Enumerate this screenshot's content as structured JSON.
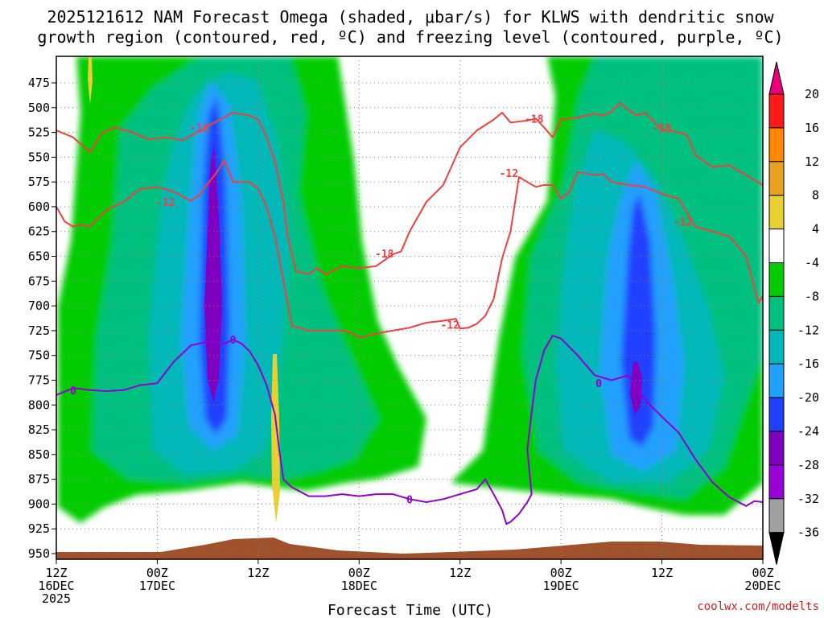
{
  "chart_data": {
    "type": "time-height contour",
    "title_line1": "2025121612 NAM Forecast Omega (shaded, μbar/s) for KLWS with dendritic snow",
    "title_line2": "growth region (contoured, red, ºC) and freezing level (contoured, purple, ºC)",
    "xlabel": "Forecast Time (UTC)",
    "credit": "coolwx.com/modelts",
    "ylim": [
      950,
      450
    ],
    "y_ticks": [
      475,
      500,
      525,
      550,
      575,
      600,
      625,
      650,
      675,
      700,
      725,
      750,
      775,
      800,
      825,
      850,
      875,
      900,
      925,
      950
    ],
    "x_range_hours": [
      0,
      84
    ],
    "x_ticks": [
      {
        "hour": 0,
        "label1": "12Z",
        "label2": "16DEC",
        "label3": "2025"
      },
      {
        "hour": 12,
        "label1": "00Z",
        "label2": "17DEC",
        "label3": ""
      },
      {
        "hour": 24,
        "label1": "12Z",
        "label2": "",
        "label3": ""
      },
      {
        "hour": 36,
        "label1": "00Z",
        "label2": "18DEC",
        "label3": ""
      },
      {
        "hour": 48,
        "label1": "12Z",
        "label2": "",
        "label3": ""
      },
      {
        "hour": 60,
        "label1": "00Z",
        "label2": "19DEC",
        "label3": ""
      },
      {
        "hour": 72,
        "label1": "12Z",
        "label2": "",
        "label3": ""
      },
      {
        "hour": 84,
        "label1": "00Z",
        "label2": "20DEC",
        "label3": ""
      }
    ],
    "colorbar": {
      "levels": [
        20,
        16,
        12,
        8,
        4,
        -4,
        -8,
        -12,
        -16,
        -20,
        -24,
        -28,
        -32,
        -36
      ],
      "colors": [
        "#ff1a1a",
        "#ff8800",
        "#e8a020",
        "#e8d030",
        "#ffffff",
        "#00cc00",
        "#00c080",
        "#00b8b8",
        "#20a0ff",
        "#2040ff",
        "#8000c0",
        "#9a00d8",
        "#a0a0a0"
      ],
      "top_color": "#e8007a",
      "bottom_color": "#000000"
    },
    "dgz_color": "#f04040",
    "freezing_color": "#9000d0",
    "contour_labels": [
      {
        "text": "-18",
        "hour": 17.0,
        "p": 520,
        "color": "#f04040"
      },
      {
        "text": "-12",
        "hour": 13.0,
        "p": 595,
        "color": "#f04040"
      },
      {
        "text": "-18",
        "hour": 39.0,
        "p": 647,
        "color": "#f04040"
      },
      {
        "text": "-12",
        "hour": 46.8,
        "p": 719,
        "color": "#f04040"
      },
      {
        "text": "-12",
        "hour": 53.8,
        "p": 566,
        "color": "#f04040"
      },
      {
        "text": "-18",
        "hour": 56.8,
        "p": 511,
        "color": "#f04040"
      },
      {
        "text": "-18",
        "hour": 72.0,
        "p": 520,
        "color": "#f04040"
      },
      {
        "text": "-12",
        "hour": 74.5,
        "p": 615,
        "color": "#f04040"
      },
      {
        "text": "0",
        "hour": 2.0,
        "p": 785,
        "color": "#9000d0"
      },
      {
        "text": "0",
        "hour": 21.0,
        "p": 734,
        "color": "#9000d0"
      },
      {
        "text": "0",
        "hour": 42.0,
        "p": 895,
        "color": "#9000d0"
      },
      {
        "text": "0",
        "hour": 64.5,
        "p": 778,
        "color": "#9000d0"
      }
    ],
    "series": [
      {
        "name": "dgz_-18_upper",
        "color": "#f04040",
        "points": [
          [
            0,
            523
          ],
          [
            2,
            530
          ],
          [
            4,
            545
          ],
          [
            5.5,
            525
          ],
          [
            7,
            520
          ],
          [
            9,
            525
          ],
          [
            11,
            532
          ],
          [
            13,
            530
          ],
          [
            15,
            533
          ],
          [
            17,
            524
          ],
          [
            19,
            514
          ],
          [
            21,
            505
          ],
          [
            23,
            508
          ],
          [
            24,
            512
          ],
          [
            25,
            530
          ],
          [
            26,
            555
          ],
          [
            27,
            595
          ],
          [
            27.5,
            630
          ],
          [
            28.5,
            665
          ],
          [
            30,
            668
          ],
          [
            31,
            662
          ],
          [
            32,
            668
          ],
          [
            34,
            660
          ],
          [
            36,
            662
          ],
          [
            38,
            660
          ],
          [
            40,
            648
          ],
          [
            41,
            645
          ],
          [
            42,
            625
          ],
          [
            44,
            595
          ],
          [
            46,
            578
          ],
          [
            48,
            540
          ],
          [
            50,
            523
          ],
          [
            52,
            512
          ],
          [
            53,
            505
          ],
          [
            54,
            515
          ],
          [
            56,
            513
          ],
          [
            57,
            511
          ],
          [
            58,
            520
          ],
          [
            59,
            530
          ],
          [
            60,
            512
          ],
          [
            62,
            510
          ],
          [
            64,
            506
          ],
          [
            65,
            508
          ],
          [
            66,
            504
          ],
          [
            67,
            495
          ],
          [
            68,
            502
          ],
          [
            69,
            508
          ],
          [
            70,
            505
          ],
          [
            71,
            514
          ],
          [
            72,
            522
          ],
          [
            74,
            525
          ],
          [
            75,
            528
          ],
          [
            76,
            548
          ],
          [
            78,
            560
          ],
          [
            80,
            558
          ],
          [
            82,
            568
          ],
          [
            84,
            578
          ]
        ]
      },
      {
        "name": "dgz_-12_lower",
        "color": "#f04040",
        "points": [
          [
            0,
            600
          ],
          [
            1,
            615
          ],
          [
            2,
            620
          ],
          [
            3,
            618
          ],
          [
            4,
            620
          ],
          [
            6,
            603
          ],
          [
            8,
            595
          ],
          [
            10,
            582
          ],
          [
            12,
            580
          ],
          [
            14,
            585
          ],
          [
            16,
            594
          ],
          [
            17,
            588
          ],
          [
            18,
            577
          ],
          [
            19,
            566
          ],
          [
            20,
            553
          ],
          [
            21,
            575
          ],
          [
            23,
            575
          ],
          [
            24,
            582
          ],
          [
            25,
            600
          ],
          [
            26,
            630
          ],
          [
            27,
            675
          ],
          [
            28,
            720
          ],
          [
            30,
            725
          ],
          [
            32,
            725
          ],
          [
            34,
            725
          ],
          [
            35,
            727
          ],
          [
            36,
            732
          ],
          [
            38,
            728
          ],
          [
            40,
            725
          ],
          [
            42,
            722
          ],
          [
            44,
            717
          ],
          [
            46,
            715
          ],
          [
            47.5,
            713
          ],
          [
            48,
            723
          ],
          [
            49,
            722
          ],
          [
            50,
            718
          ],
          [
            51,
            710
          ],
          [
            52,
            693
          ],
          [
            53,
            652
          ],
          [
            54,
            625
          ],
          [
            55,
            570
          ],
          [
            56,
            575
          ],
          [
            57,
            580
          ],
          [
            58,
            578
          ],
          [
            59,
            578
          ],
          [
            60,
            592
          ],
          [
            61,
            585
          ],
          [
            62,
            565
          ],
          [
            64,
            568
          ],
          [
            65,
            567
          ],
          [
            66,
            575
          ],
          [
            68,
            578
          ],
          [
            70,
            580
          ],
          [
            72,
            587
          ],
          [
            74,
            592
          ],
          [
            76,
            620
          ],
          [
            78,
            625
          ],
          [
            80,
            630
          ],
          [
            82,
            650
          ],
          [
            83,
            682
          ],
          [
            83.5,
            697
          ],
          [
            84,
            690
          ],
          [
            84,
            675
          ]
        ]
      },
      {
        "name": "freezing_0",
        "color": "#9000d0",
        "points": [
          [
            0,
            790
          ],
          [
            2,
            783
          ],
          [
            4,
            785
          ],
          [
            6,
            786
          ],
          [
            8,
            785
          ],
          [
            10,
            780
          ],
          [
            12,
            778
          ],
          [
            14,
            756
          ],
          [
            16,
            740
          ],
          [
            18,
            736
          ],
          [
            20,
            738
          ],
          [
            21,
            734
          ],
          [
            22,
            738
          ],
          [
            23,
            746
          ],
          [
            24,
            760
          ],
          [
            25,
            780
          ],
          [
            26,
            810
          ],
          [
            26.5,
            845
          ],
          [
            27,
            875
          ],
          [
            28,
            883
          ],
          [
            30,
            892
          ],
          [
            32,
            892
          ],
          [
            34,
            890
          ],
          [
            36,
            892
          ],
          [
            38,
            890
          ],
          [
            40,
            890
          ],
          [
            42,
            895
          ],
          [
            44,
            898
          ],
          [
            46,
            895
          ],
          [
            48,
            890
          ],
          [
            50,
            885
          ],
          [
            51,
            875
          ],
          [
            52,
            890
          ],
          [
            53,
            906
          ],
          [
            53.5,
            920
          ],
          [
            54,
            918
          ],
          [
            55,
            910
          ],
          [
            56,
            898
          ],
          [
            56.5,
            890
          ],
          [
            56,
            845
          ],
          [
            56.5,
            808
          ],
          [
            57,
            775
          ],
          [
            58,
            745
          ],
          [
            59,
            730
          ],
          [
            60,
            733
          ],
          [
            62,
            750
          ],
          [
            64,
            770
          ],
          [
            66,
            775
          ],
          [
            68,
            770
          ],
          [
            70,
            795
          ],
          [
            72,
            812
          ],
          [
            74,
            828
          ],
          [
            76,
            855
          ],
          [
            78,
            878
          ],
          [
            80,
            893
          ],
          [
            82,
            902
          ],
          [
            83,
            897
          ],
          [
            84,
            898
          ]
        ]
      }
    ]
  }
}
